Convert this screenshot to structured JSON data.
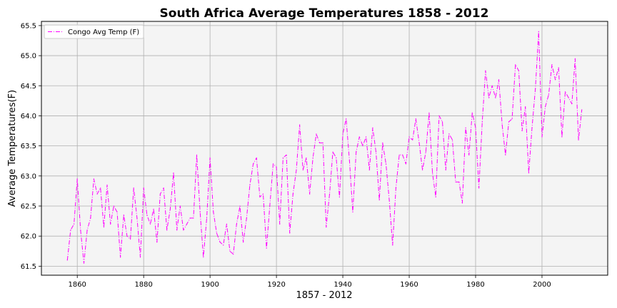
{
  "chart_data": {
    "type": "line",
    "title": "South Africa Average Temperatures 1858 - 2012",
    "xlabel": "1857 - 2012",
    "ylabel": "Average Temperatures(F)",
    "xlim": [
      1849.2,
      2019.8
    ],
    "ylim": [
      61.35,
      65.57
    ],
    "xticks": [
      1860,
      1880,
      1900,
      1920,
      1940,
      1960,
      1980,
      2000
    ],
    "yticks": [
      61.5,
      62.0,
      62.5,
      63.0,
      63.5,
      64.0,
      64.5,
      65.0,
      65.5
    ],
    "ytick_labels": [
      "61.5",
      "62.0",
      "62.5",
      "63.0",
      "63.5",
      "64.0",
      "64.5",
      "65.0",
      "65.5"
    ],
    "grid": true,
    "legend_position": "top-left",
    "background": "#f4f4f4",
    "series": [
      {
        "name": "Congo Avg Temp (F)",
        "color": "#ff00ff",
        "line_style": "dash-dot",
        "x": [
          1857,
          1858,
          1859,
          1860,
          1861,
          1862,
          1863,
          1864,
          1865,
          1866,
          1867,
          1868,
          1869,
          1870,
          1871,
          1872,
          1873,
          1874,
          1875,
          1876,
          1877,
          1878,
          1879,
          1880,
          1881,
          1882,
          1883,
          1884,
          1885,
          1886,
          1887,
          1888,
          1889,
          1890,
          1891,
          1892,
          1893,
          1894,
          1895,
          1896,
          1897,
          1898,
          1899,
          1900,
          1901,
          1902,
          1903,
          1904,
          1905,
          1906,
          1907,
          1908,
          1909,
          1910,
          1911,
          1912,
          1913,
          1914,
          1915,
          1916,
          1917,
          1918,
          1919,
          1920,
          1921,
          1922,
          1923,
          1924,
          1925,
          1926,
          1927,
          1928,
          1929,
          1930,
          1931,
          1932,
          1933,
          1934,
          1935,
          1936,
          1937,
          1938,
          1939,
          1940,
          1941,
          1942,
          1943,
          1944,
          1945,
          1946,
          1947,
          1948,
          1949,
          1950,
          1951,
          1952,
          1953,
          1954,
          1955,
          1956,
          1957,
          1958,
          1959,
          1960,
          1961,
          1962,
          1963,
          1964,
          1965,
          1966,
          1967,
          1968,
          1969,
          1970,
          1971,
          1972,
          1973,
          1974,
          1975,
          1976,
          1977,
          1978,
          1979,
          1980,
          1981,
          1982,
          1983,
          1984,
          1985,
          1986,
          1987,
          1988,
          1989,
          1990,
          1991,
          1992,
          1993,
          1994,
          1995,
          1996,
          1997,
          1998,
          1999,
          2000,
          2001,
          2002,
          2003,
          2004,
          2005,
          2006,
          2007,
          2008,
          2009,
          2010,
          2011,
          2012
        ],
        "values": [
          61.6,
          62.1,
          62.2,
          62.95,
          62.1,
          61.55,
          62.1,
          62.3,
          62.95,
          62.7,
          62.8,
          62.15,
          62.85,
          62.2,
          62.5,
          62.4,
          61.65,
          62.35,
          62.0,
          61.95,
          62.8,
          62.3,
          61.65,
          62.8,
          62.35,
          62.2,
          62.45,
          61.9,
          62.7,
          62.8,
          62.1,
          62.45,
          63.05,
          62.1,
          62.5,
          62.1,
          62.2,
          62.3,
          62.3,
          63.35,
          62.4,
          61.65,
          62.3,
          63.3,
          62.4,
          62.05,
          61.9,
          61.85,
          62.2,
          61.75,
          61.7,
          62.2,
          62.5,
          61.9,
          62.3,
          62.85,
          63.2,
          63.3,
          62.65,
          62.7,
          61.8,
          62.5,
          63.2,
          63.15,
          62.2,
          63.3,
          63.35,
          62.05,
          62.7,
          63.1,
          63.85,
          63.1,
          63.3,
          62.7,
          63.3,
          63.7,
          63.55,
          63.55,
          62.15,
          62.7,
          63.4,
          63.3,
          62.65,
          63.7,
          63.95,
          63.25,
          62.4,
          63.4,
          63.65,
          63.5,
          63.65,
          63.1,
          63.8,
          63.4,
          62.6,
          63.55,
          63.2,
          62.6,
          61.85,
          62.8,
          63.35,
          63.35,
          63.2,
          63.65,
          63.6,
          63.95,
          63.55,
          63.1,
          63.4,
          64.05,
          63.05,
          62.65,
          64.0,
          63.9,
          63.1,
          63.7,
          63.6,
          62.9,
          62.9,
          62.55,
          63.8,
          63.35,
          64.05,
          63.8,
          62.8,
          63.9,
          64.75,
          64.3,
          64.5,
          64.3,
          64.6,
          63.85,
          63.35,
          63.9,
          63.95,
          64.85,
          64.75,
          63.75,
          64.15,
          63.05,
          63.8,
          64.45,
          65.4,
          63.65,
          64.15,
          64.35,
          64.85,
          64.6,
          64.8,
          63.65,
          64.4,
          64.3,
          64.2,
          64.95,
          63.6,
          64.1
        ]
      }
    ]
  }
}
